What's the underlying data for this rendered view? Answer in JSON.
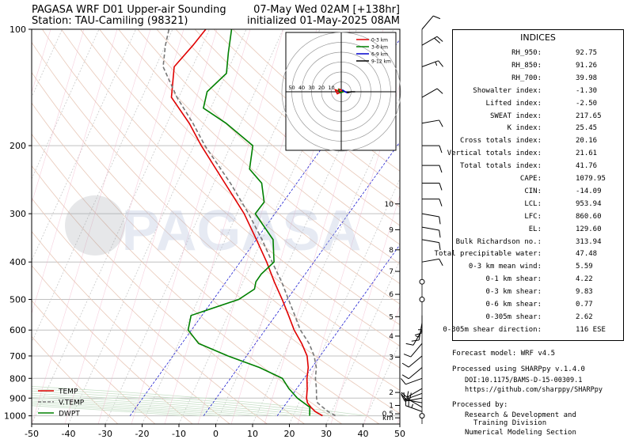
{
  "header": {
    "title_left": "PAGASA WRF D01 Upper-air Sounding",
    "station": "Station: TAU-Camiling (98321)",
    "valid": "07-May Wed 02AM [+138hr]",
    "init": "initialized 01-May-2025 08AM"
  },
  "watermark": "PAGASA",
  "colors": {
    "temp": "#e00000",
    "vtemp": "#777777",
    "dwpt": "#008000",
    "isotherm": "#c8c8c8",
    "dry_adiabat": "#e8c8b8",
    "moist_adiabat": "#c8e0c8",
    "isobar_pink": "#f0b0c8",
    "mixing_ratio": "#0000cc"
  },
  "chart_data": {
    "type": "line",
    "title": "PAGASA WRF D01 Upper-air Sounding",
    "xlabel": "",
    "ylabel": "",
    "xlim": [
      -50,
      50
    ],
    "ylim": [
      1050,
      100
    ],
    "y_scale": "log",
    "x_ticks": [
      "-50",
      "-40",
      "-30",
      "-20",
      "-10",
      "0",
      "10",
      "20",
      "30",
      "40",
      "50"
    ],
    "y_ticks": [
      "100",
      "200",
      "300",
      "400",
      "500",
      "600",
      "700",
      "800",
      "900",
      "1000"
    ],
    "y_tick_values": [
      100,
      200,
      300,
      400,
      500,
      600,
      700,
      800,
      900,
      1000
    ],
    "height_ticks": [
      {
        "p": 1012,
        "label": "km"
      },
      {
        "p": 988,
        "label": "0.5"
      },
      {
        "p": 940,
        "label": "1"
      },
      {
        "p": 870,
        "label": "2"
      },
      {
        "p": 705,
        "label": "3"
      },
      {
        "p": 622,
        "label": "4"
      },
      {
        "p": 554,
        "label": "5"
      },
      {
        "p": 485,
        "label": "6"
      },
      {
        "p": 423,
        "label": "7"
      },
      {
        "p": 372,
        "label": "8"
      },
      {
        "p": 330,
        "label": "9"
      },
      {
        "p": 283,
        "label": "10"
      }
    ],
    "legend_position": "bottom-left",
    "series": [
      {
        "name": "TEMP",
        "key": "temp",
        "points": [
          [
            1000,
            28.0
          ],
          [
            975,
            25.5
          ],
          [
            950,
            23.8
          ],
          [
            925,
            22.3
          ],
          [
            900,
            21.5
          ],
          [
            850,
            20.5
          ],
          [
            800,
            19.2
          ],
          [
            750,
            18.2
          ],
          [
            700,
            16.5
          ],
          [
            650,
            13.5
          ],
          [
            600,
            9.8
          ],
          [
            550,
            6.5
          ],
          [
            500,
            2.8
          ],
          [
            450,
            -1.5
          ],
          [
            400,
            -6.0
          ],
          [
            350,
            -11.5
          ],
          [
            300,
            -18.0
          ],
          [
            250,
            -27.0
          ],
          [
            200,
            -38.0
          ],
          [
            175,
            -44.0
          ],
          [
            150,
            -52.0
          ],
          [
            125,
            -55.0
          ],
          [
            110,
            -52.5
          ],
          [
            100,
            -51.0
          ]
        ]
      },
      {
        "name": "V.TEMP",
        "key": "vtemp",
        "points": [
          [
            1000,
            31.5
          ],
          [
            975,
            29.0
          ],
          [
            950,
            27.0
          ],
          [
            925,
            25.0
          ],
          [
            900,
            24.2
          ],
          [
            850,
            23.0
          ],
          [
            800,
            21.5
          ],
          [
            750,
            20.4
          ],
          [
            700,
            18.4
          ],
          [
            650,
            15.5
          ],
          [
            600,
            11.5
          ],
          [
            550,
            8.2
          ],
          [
            500,
            4.5
          ],
          [
            450,
            0.5
          ],
          [
            400,
            -4.5
          ],
          [
            350,
            -10.0
          ],
          [
            300,
            -16.8
          ],
          [
            250,
            -25.5
          ],
          [
            200,
            -37.0
          ],
          [
            175,
            -43.0
          ],
          [
            150,
            -50.5
          ],
          [
            125,
            -58.0
          ],
          [
            110,
            -60.0
          ],
          [
            100,
            -61.0
          ]
        ]
      },
      {
        "name": "DWPT",
        "key": "dwpt",
        "points": [
          [
            1000,
            24.5
          ],
          [
            975,
            24.0
          ],
          [
            950,
            23.5
          ],
          [
            900,
            19.0
          ],
          [
            850,
            15.5
          ],
          [
            800,
            12.5
          ],
          [
            750,
            5.0
          ],
          [
            700,
            -5.0
          ],
          [
            650,
            -14.5
          ],
          [
            600,
            -19.0
          ],
          [
            550,
            -20.0
          ],
          [
            500,
            -9.0
          ],
          [
            470,
            -6.0
          ],
          [
            450,
            -6.5
          ],
          [
            430,
            -6.0
          ],
          [
            400,
            -4.0
          ],
          [
            350,
            -7.0
          ],
          [
            300,
            -15.0
          ],
          [
            280,
            -14.0
          ],
          [
            250,
            -17.0
          ],
          [
            230,
            -22.0
          ],
          [
            200,
            -24.0
          ],
          [
            175,
            -34.0
          ],
          [
            160,
            -42.0
          ],
          [
            145,
            -43.0
          ],
          [
            130,
            -40.0
          ],
          [
            115,
            -42.0
          ],
          [
            100,
            -44.0
          ]
        ]
      }
    ],
    "wind_barbs": [
      {
        "p": 1000,
        "calm": true
      },
      {
        "p": 975,
        "dir": 290,
        "spd": 25
      },
      {
        "p": 950,
        "dir": 300,
        "spd": 20
      },
      {
        "p": 925,
        "dir": 280,
        "spd": 15
      },
      {
        "p": 900,
        "dir": 260,
        "spd": 10
      },
      {
        "p": 875,
        "dir": 250,
        "spd": 10
      },
      {
        "p": 850,
        "dir": 240,
        "spd": 10
      },
      {
        "p": 800,
        "dir": 250,
        "spd": 10
      },
      {
        "p": 750,
        "dir": 230,
        "spd": 10
      },
      {
        "p": 700,
        "dir": 230,
        "spd": 10
      },
      {
        "p": 650,
        "dir": 220,
        "spd": 10
      },
      {
        "p": 600,
        "dir": 210,
        "spd": 10
      },
      {
        "p": 575,
        "dir": 190,
        "spd": 15
      },
      {
        "p": 550,
        "dir": 180,
        "spd": 15
      },
      {
        "p": 500,
        "calm": true
      },
      {
        "p": 450,
        "calm": true
      },
      {
        "p": 400,
        "dir": 80,
        "spd": 10
      },
      {
        "p": 350,
        "dir": 100,
        "spd": 10
      },
      {
        "p": 325,
        "dir": 100,
        "spd": 10
      },
      {
        "p": 300,
        "dir": 100,
        "spd": 10
      },
      {
        "p": 275,
        "dir": 90,
        "spd": 10
      },
      {
        "p": 250,
        "dir": 90,
        "spd": 10
      },
      {
        "p": 225,
        "dir": 90,
        "spd": 10
      },
      {
        "p": 200,
        "dir": 90,
        "spd": 10
      },
      {
        "p": 175,
        "dir": 80,
        "spd": 10
      },
      {
        "p": 150,
        "dir": 60,
        "spd": 10
      },
      {
        "p": 125,
        "dir": 70,
        "spd": 15
      },
      {
        "p": 110,
        "dir": 60,
        "spd": 20
      },
      {
        "p": 100,
        "dir": 40,
        "spd": 10
      }
    ],
    "hodograph": {
      "ring_labels": [
        "50",
        "40",
        "30",
        "20",
        "10"
      ],
      "legend": [
        {
          "name": "0-3 km",
          "color": "#e00000"
        },
        {
          "name": "3-6 km",
          "color": "#008000"
        },
        {
          "name": "6-9 km",
          "color": "#0000cc"
        },
        {
          "name": "9-12 km",
          "color": "#000000"
        }
      ],
      "segments": [
        {
          "color": "#e00000",
          "points": [
            [
              0,
              0
            ],
            [
              -6,
              -2
            ],
            [
              -4,
              2
            ],
            [
              2,
              -1
            ],
            [
              -3,
              -3
            ]
          ]
        },
        {
          "color": "#008000",
          "points": [
            [
              -3,
              -3
            ],
            [
              -1,
              1
            ],
            [
              2,
              0
            ],
            [
              1,
              -2
            ]
          ]
        },
        {
          "color": "#0000cc",
          "points": [
            [
              1,
              -2
            ],
            [
              4,
              0
            ],
            [
              6,
              1
            ]
          ]
        },
        {
          "color": "#000000",
          "points": [
            [
              6,
              1
            ],
            [
              10,
              0
            ],
            [
              14,
              0
            ]
          ]
        }
      ]
    }
  },
  "indices": {
    "title": "INDICES",
    "rows": [
      {
        "label": "RH_950:",
        "value": "92.75"
      },
      {
        "label": "RH_850:",
        "value": "91.26"
      },
      {
        "label": "RH_700:",
        "value": "39.98"
      },
      {
        "label": "Showalter index:",
        "value": "-1.30"
      },
      {
        "label": "Lifted index:",
        "value": "-2.50"
      },
      {
        "label": "SWEAT index:",
        "value": "217.65"
      },
      {
        "label": "K index:",
        "value": "25.45"
      },
      {
        "label": "Cross totals index:",
        "value": "20.16"
      },
      {
        "label": "Vertical totals index:",
        "value": "21.61"
      },
      {
        "label": "Total totals index:",
        "value": "41.76"
      },
      {
        "label": "CAPE:",
        "value": "1079.95"
      },
      {
        "label": "CIN:",
        "value": "-14.09"
      },
      {
        "label": "LCL:",
        "value": "953.94"
      },
      {
        "label": "LFC:",
        "value": "860.60"
      },
      {
        "label": "EL:",
        "value": "129.60"
      },
      {
        "label": "Bulk Richardson no.:",
        "value": "313.94"
      },
      {
        "label": "Total precipitable water:",
        "value": "47.48"
      },
      {
        "label": "0-3 km mean wind:",
        "value": "5.59"
      },
      {
        "label": "0-1 km shear:",
        "value": "4.22"
      },
      {
        "label": "0-3 km shear:",
        "value": "9.83"
      },
      {
        "label": "0-6 km shear:",
        "value": "0.77"
      },
      {
        "label": "0-305m shear:",
        "value": "2.62"
      },
      {
        "label": "0-305m shear direction:",
        "value": "116 ESE"
      }
    ]
  },
  "footer": {
    "model": "Forecast model: WRF v4.5",
    "processed": "Processed using SHARPpy v.1.4.0",
    "doi": "DOI:10.1175/BAMS-D-15-00309.1",
    "url": "https://github.com/sharppy/SHARPpy",
    "processed_by": "Processed by:",
    "division_1": "Research & Development and",
    "division_2": "Training Division",
    "section": "Numerical Modeling Section"
  }
}
